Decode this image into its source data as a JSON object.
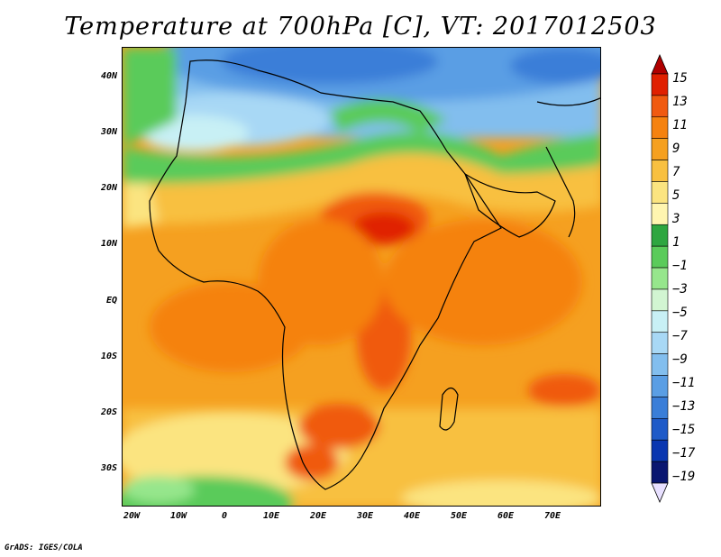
{
  "title": "Temperature at 700hPa [C], VT: 2017012503",
  "credit": "GrADS: IGES/COLA",
  "map": {
    "variable": "Temperature",
    "level": "700hPa",
    "units": "C",
    "valid_time": "2017012503",
    "lon_range": [
      -23,
      79
    ],
    "lat_range": [
      -37,
      45
    ],
    "lat_labels": [
      "40N",
      "30N",
      "20N",
      "10N",
      "EQ",
      "10S",
      "20S",
      "30S"
    ],
    "lat_values": [
      40,
      30,
      20,
      10,
      0,
      -10,
      -20,
      -30
    ],
    "lon_labels": [
      "20W",
      "10W",
      "0",
      "10E",
      "20E",
      "30E",
      "40E",
      "50E",
      "60E",
      "70E"
    ],
    "lon_values": [
      -20,
      -10,
      0,
      10,
      20,
      30,
      40,
      50,
      60,
      70
    ]
  },
  "colorbar": {
    "labels": [
      "15",
      "13",
      "11",
      "9",
      "7",
      "5",
      "3",
      "1",
      "−1",
      "−3",
      "−5",
      "−7",
      "−9",
      "−11",
      "−13",
      "−15",
      "−17",
      "−19"
    ],
    "colors": [
      "#b00000",
      "#e02000",
      "#f05a10",
      "#f5820f",
      "#f5a020",
      "#f8c040",
      "#fbe480",
      "#fff5b0",
      "#2ea640",
      "#5acb5a",
      "#96e68c",
      "#d2f5d2",
      "#c8f0f5",
      "#a8d8f5",
      "#82beee",
      "#5a9ee4",
      "#3a7ed8",
      "#1e5ac8",
      "#0a36b0",
      "#0a1670",
      "#e8e0ff"
    ]
  }
}
